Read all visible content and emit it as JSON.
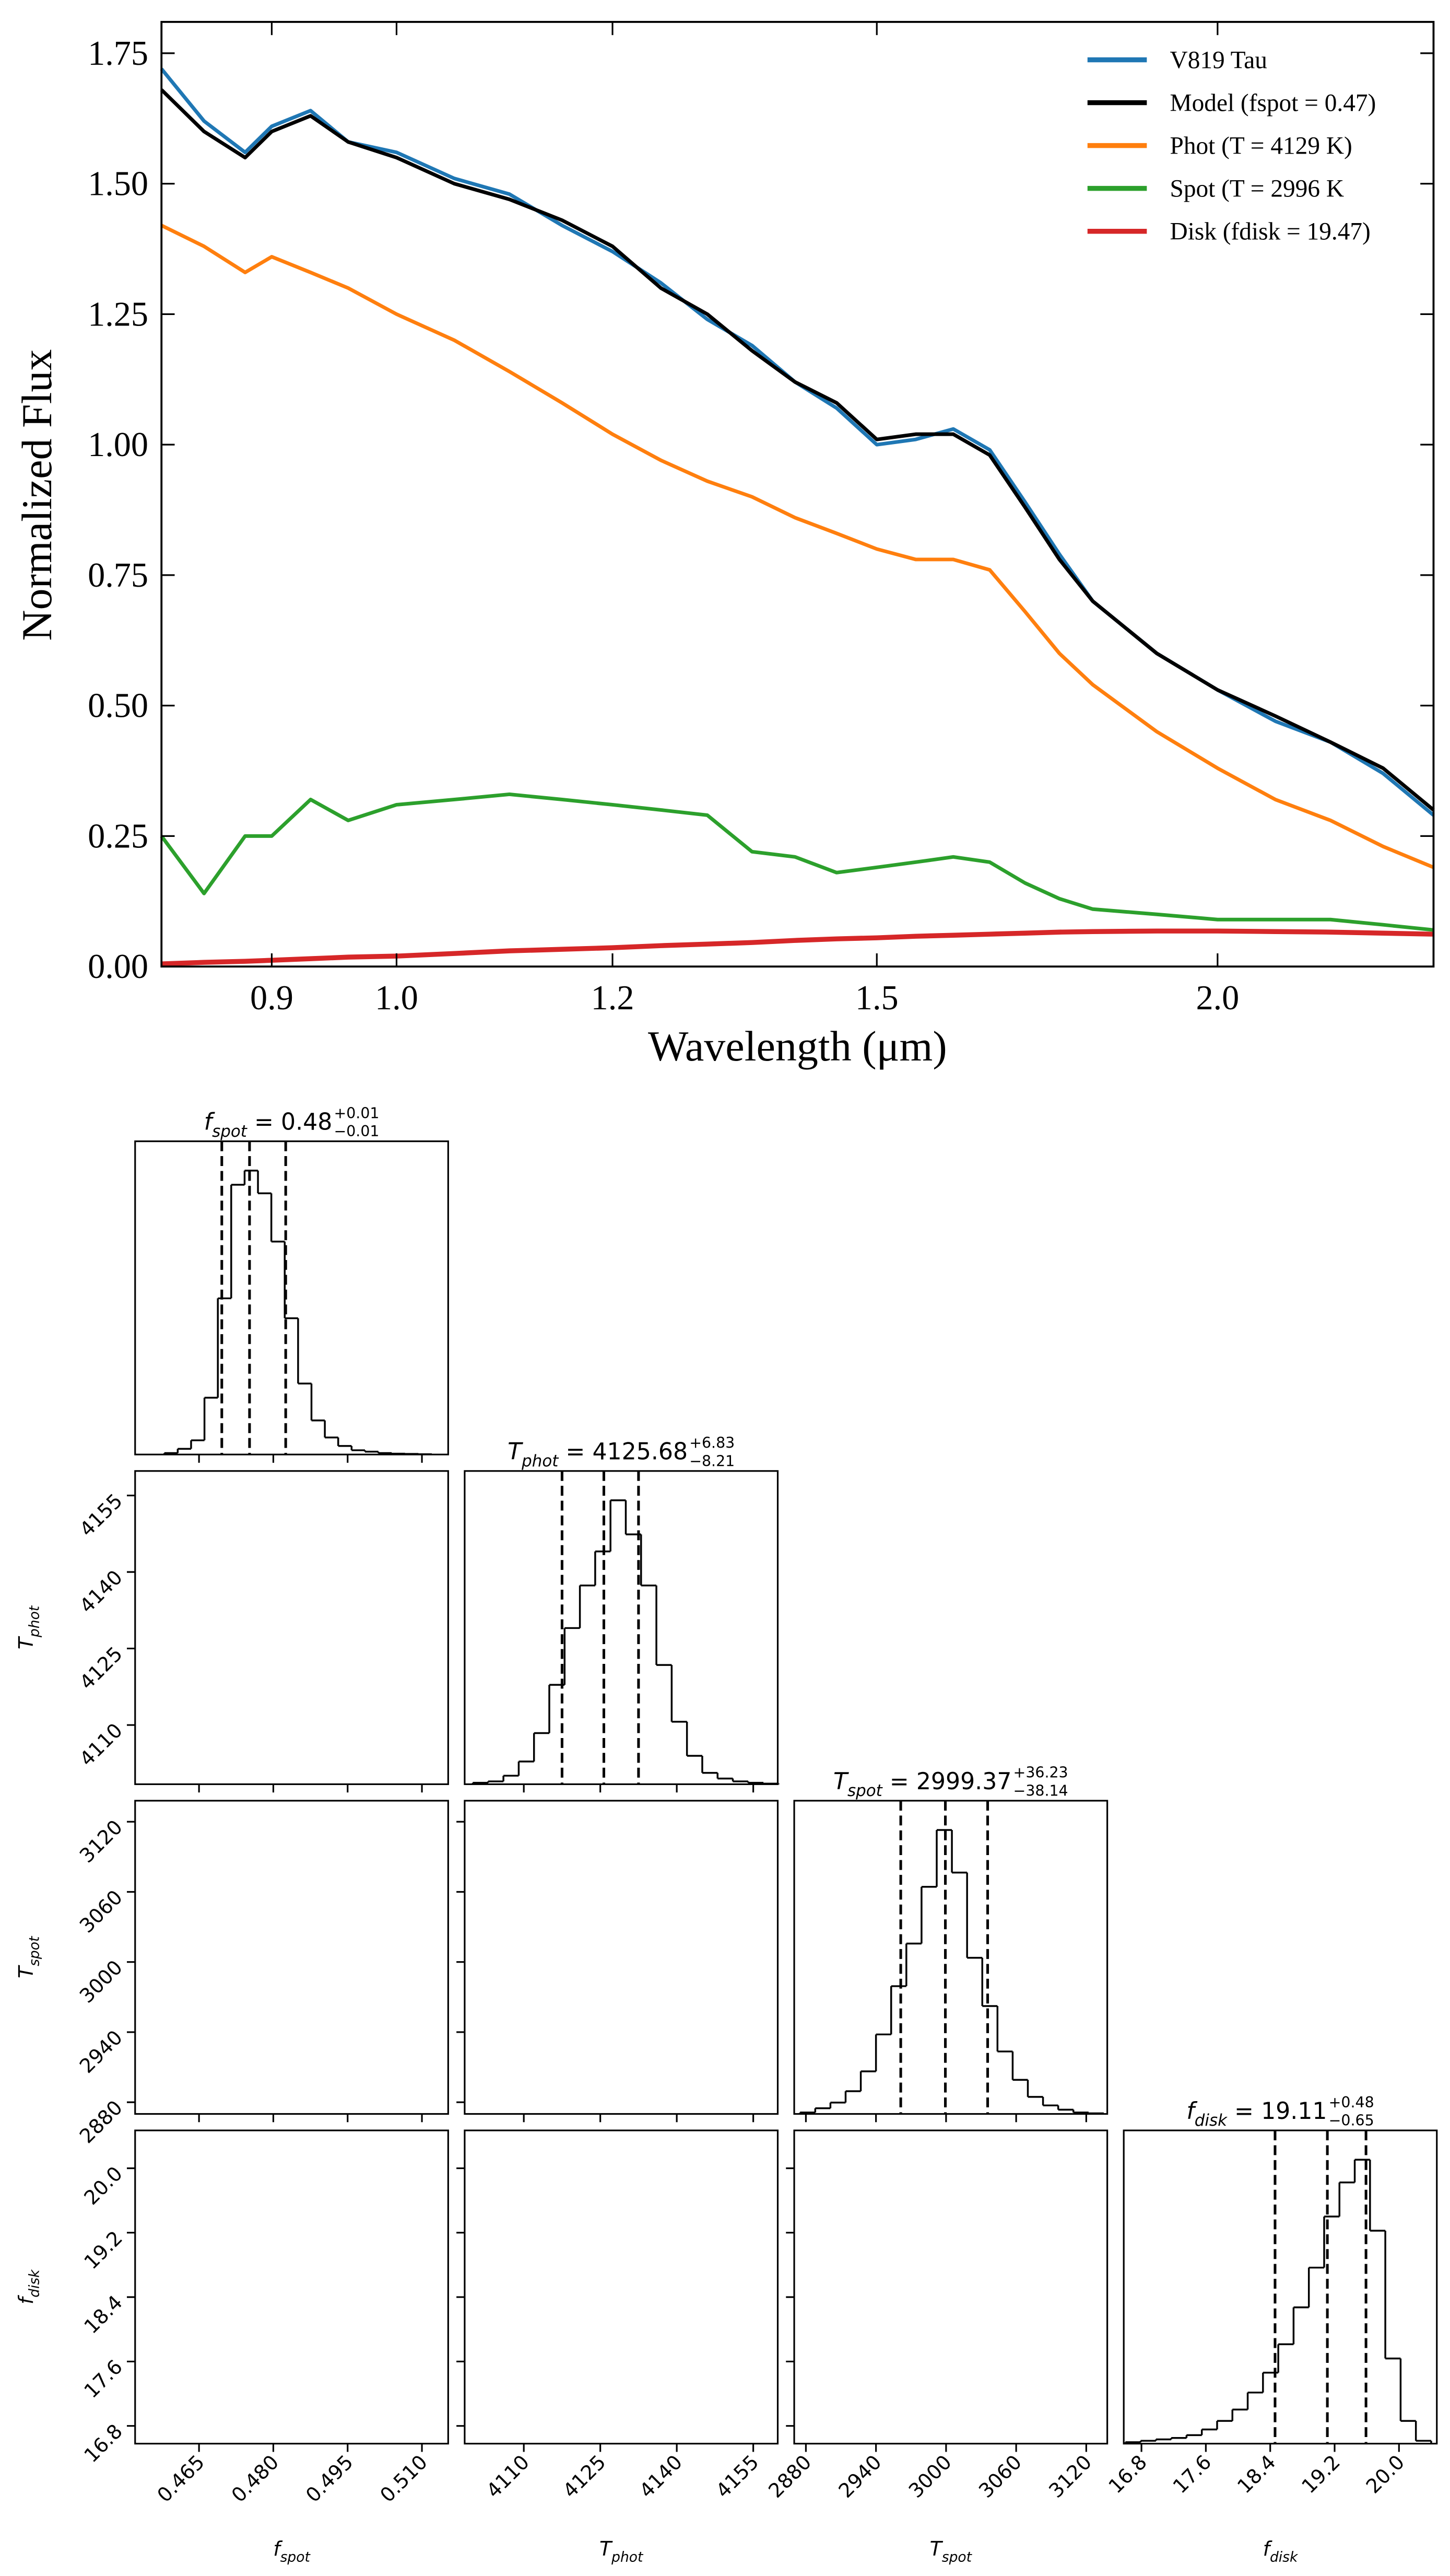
{
  "chart_data": [
    {
      "type": "line",
      "xlabel": "Wavelength (μm)",
      "ylabel": "Normalized Flux",
      "xscale": "log",
      "xlim": [
        0.82,
        2.4
      ],
      "xticks": [
        0.9,
        {
          "value": 1.0,
          "label": "1.0"
        },
        1.2,
        1.5,
        {
          "value": 2.0,
          "label": "2.0"
        }
      ],
      "ylim": [
        0,
        1.81
      ],
      "yticks": [
        {
          "value": 0,
          "label": "0.00"
        },
        0.25,
        {
          "value": 0.5,
          "label": "0.50"
        },
        0.75,
        {
          "value": 1.0,
          "label": "1.00"
        },
        1.25,
        {
          "value": 1.5,
          "label": "1.50"
        },
        1.75
      ],
      "legend": "upper right",
      "x": [
        0.82,
        0.85,
        0.88,
        0.9,
        0.93,
        0.96,
        1.0,
        1.05,
        1.1,
        1.15,
        1.2,
        1.25,
        1.3,
        1.35,
        1.4,
        1.45,
        1.5,
        1.55,
        1.6,
        1.65,
        1.7,
        1.75,
        1.8,
        1.9,
        2.0,
        2.1,
        2.2,
        2.3,
        2.4
      ],
      "series": [
        {
          "name": "V819 Tau",
          "color": "#1f77b4",
          "values": [
            1.72,
            1.62,
            1.56,
            1.61,
            1.64,
            1.58,
            1.56,
            1.51,
            1.48,
            1.42,
            1.37,
            1.31,
            1.24,
            1.19,
            1.12,
            1.07,
            1.0,
            1.01,
            1.03,
            0.99,
            0.89,
            0.79,
            0.7,
            0.6,
            0.53,
            0.47,
            0.43,
            0.37,
            0.29
          ]
        },
        {
          "name": "Model (fspot = 0.47)",
          "color": "#000000",
          "values": [
            1.68,
            1.6,
            1.55,
            1.6,
            1.63,
            1.58,
            1.55,
            1.5,
            1.47,
            1.43,
            1.38,
            1.3,
            1.25,
            1.18,
            1.12,
            1.08,
            1.01,
            1.02,
            1.02,
            0.98,
            0.88,
            0.78,
            0.7,
            0.6,
            0.53,
            0.48,
            0.43,
            0.38,
            0.3
          ]
        },
        {
          "name": "Phot (T = 4129 K)",
          "color": "#ff7f0e",
          "values": [
            1.42,
            1.38,
            1.33,
            1.36,
            1.33,
            1.3,
            1.25,
            1.2,
            1.14,
            1.08,
            1.02,
            0.97,
            0.93,
            0.9,
            0.86,
            0.83,
            0.8,
            0.78,
            0.78,
            0.76,
            0.68,
            0.6,
            0.54,
            0.45,
            0.38,
            0.32,
            0.28,
            0.23,
            0.19
          ]
        },
        {
          "name": "Spot (T = 2996 K",
          "color": "#2ca02c",
          "values": [
            0.25,
            0.14,
            0.25,
            0.25,
            0.32,
            0.28,
            0.31,
            0.32,
            0.33,
            0.32,
            0.31,
            0.3,
            0.29,
            0.22,
            0.21,
            0.18,
            0.19,
            0.2,
            0.21,
            0.2,
            0.16,
            0.13,
            0.11,
            0.1,
            0.09,
            0.09,
            0.09,
            0.08,
            0.07
          ]
        },
        {
          "name": "Disk (fdisk = 19.47)",
          "color": "#d62728",
          "values": [
            0.005,
            0.008,
            0.01,
            0.012,
            0.015,
            0.018,
            0.02,
            0.025,
            0.03,
            0.033,
            0.036,
            0.04,
            0.043,
            0.046,
            0.05,
            0.053,
            0.055,
            0.058,
            0.06,
            0.062,
            0.064,
            0.066,
            0.067,
            0.068,
            0.068,
            0.067,
            0.066,
            0.064,
            0.062
          ]
        }
      ]
    },
    {
      "type": "corner",
      "params": [
        {
          "symbol": "f",
          "subscript": "spot",
          "title_value": " = 0.48",
          "title_upper": "+0.01",
          "title_lower": "−0.01",
          "lim": [
            0.4521,
            0.5153
          ],
          "ticks": [
            0.465,
            {
              "value": 0.48,
              "label": "0.480"
            },
            0.495,
            {
              "value": 0.51,
              "label": "0.510"
            }
          ],
          "quantiles": [
            0.4696,
            0.4752,
            0.4825
          ],
          "bins": [
            0.458,
            0.4607,
            0.4634,
            0.4661,
            0.4688,
            0.4715,
            0.4742,
            0.4769,
            0.4796,
            0.4823,
            0.485,
            0.4877,
            0.4904,
            0.4931,
            0.4958,
            0.4985,
            0.5012,
            0.5039,
            0.5066,
            0.5093,
            0.512
          ],
          "counts": [
            0.5,
            2,
            5,
            20,
            55,
            95,
            100,
            92,
            75,
            48,
            25,
            12,
            6,
            3,
            1.5,
            1,
            0.5,
            0.3,
            0.2,
            0.1
          ]
        },
        {
          "symbol": "T",
          "subscript": "phot",
          "title_value": " = 4125.68",
          "title_upper": "+6.83",
          "title_lower": "−8.21",
          "lim": [
            4098.4,
            4159.8
          ],
          "ticks": [
            4110,
            4125,
            4140,
            4155
          ],
          "quantiles": [
            4117.5,
            4125.7,
            4132.5
          ],
          "bins": [
            4100,
            4103,
            4106,
            4109,
            4112,
            4115,
            4118,
            4121,
            4124,
            4127,
            4130,
            4133,
            4136,
            4139,
            4142,
            4145,
            4148,
            4151,
            4154,
            4157,
            4160
          ],
          "counts": [
            0.5,
            1,
            3,
            8,
            18,
            35,
            55,
            70,
            82,
            100,
            88,
            70,
            42,
            22,
            10,
            4,
            2,
            1,
            0.5,
            0.2
          ]
        },
        {
          "symbol": "T",
          "subscript": "spot",
          "title_value": " = 2999.37",
          "title_upper": "+36.23",
          "title_lower": "−38.14",
          "lim": [
            2870,
            3138
          ],
          "ticks": [
            2880,
            2940,
            3000,
            3060,
            3120
          ],
          "quantiles": [
            2961.2,
            2999.4,
            3035.6
          ],
          "bins": [
            2875,
            2888,
            2901,
            2914,
            2927,
            2940,
            2953,
            2966,
            2979,
            2992,
            3005,
            3018,
            3031,
            3044,
            3057,
            3070,
            3083,
            3096,
            3109,
            3122,
            3135
          ],
          "counts": [
            0.5,
            2,
            4,
            8,
            15,
            28,
            45,
            60,
            80,
            100,
            85,
            55,
            38,
            22,
            12,
            6,
            3,
            1.5,
            0.5,
            0.2
          ]
        },
        {
          "symbol": "f",
          "subscript": "disk",
          "title_value": " = 19.11",
          "title_upper": "+0.48",
          "title_lower": "−0.65",
          "lim": [
            16.58,
            20.47
          ],
          "ticks": [
            16.8,
            17.6,
            18.4,
            19.2,
            {
              "value": 20.0,
              "label": "20.0"
            }
          ],
          "quantiles": [
            18.46,
            19.11,
            19.59
          ],
          "bins": [
            16.6,
            16.79,
            16.98,
            17.17,
            17.36,
            17.55,
            17.74,
            17.93,
            18.12,
            18.31,
            18.5,
            18.69,
            18.88,
            19.07,
            19.26,
            19.45,
            19.64,
            19.83,
            20.02,
            20.21,
            20.4
          ],
          "counts": [
            0.5,
            1,
            1.5,
            2,
            3,
            5,
            8,
            12,
            18,
            25,
            35,
            48,
            62,
            80,
            92,
            100,
            75,
            30,
            8,
            1
          ]
        }
      ]
    }
  ]
}
